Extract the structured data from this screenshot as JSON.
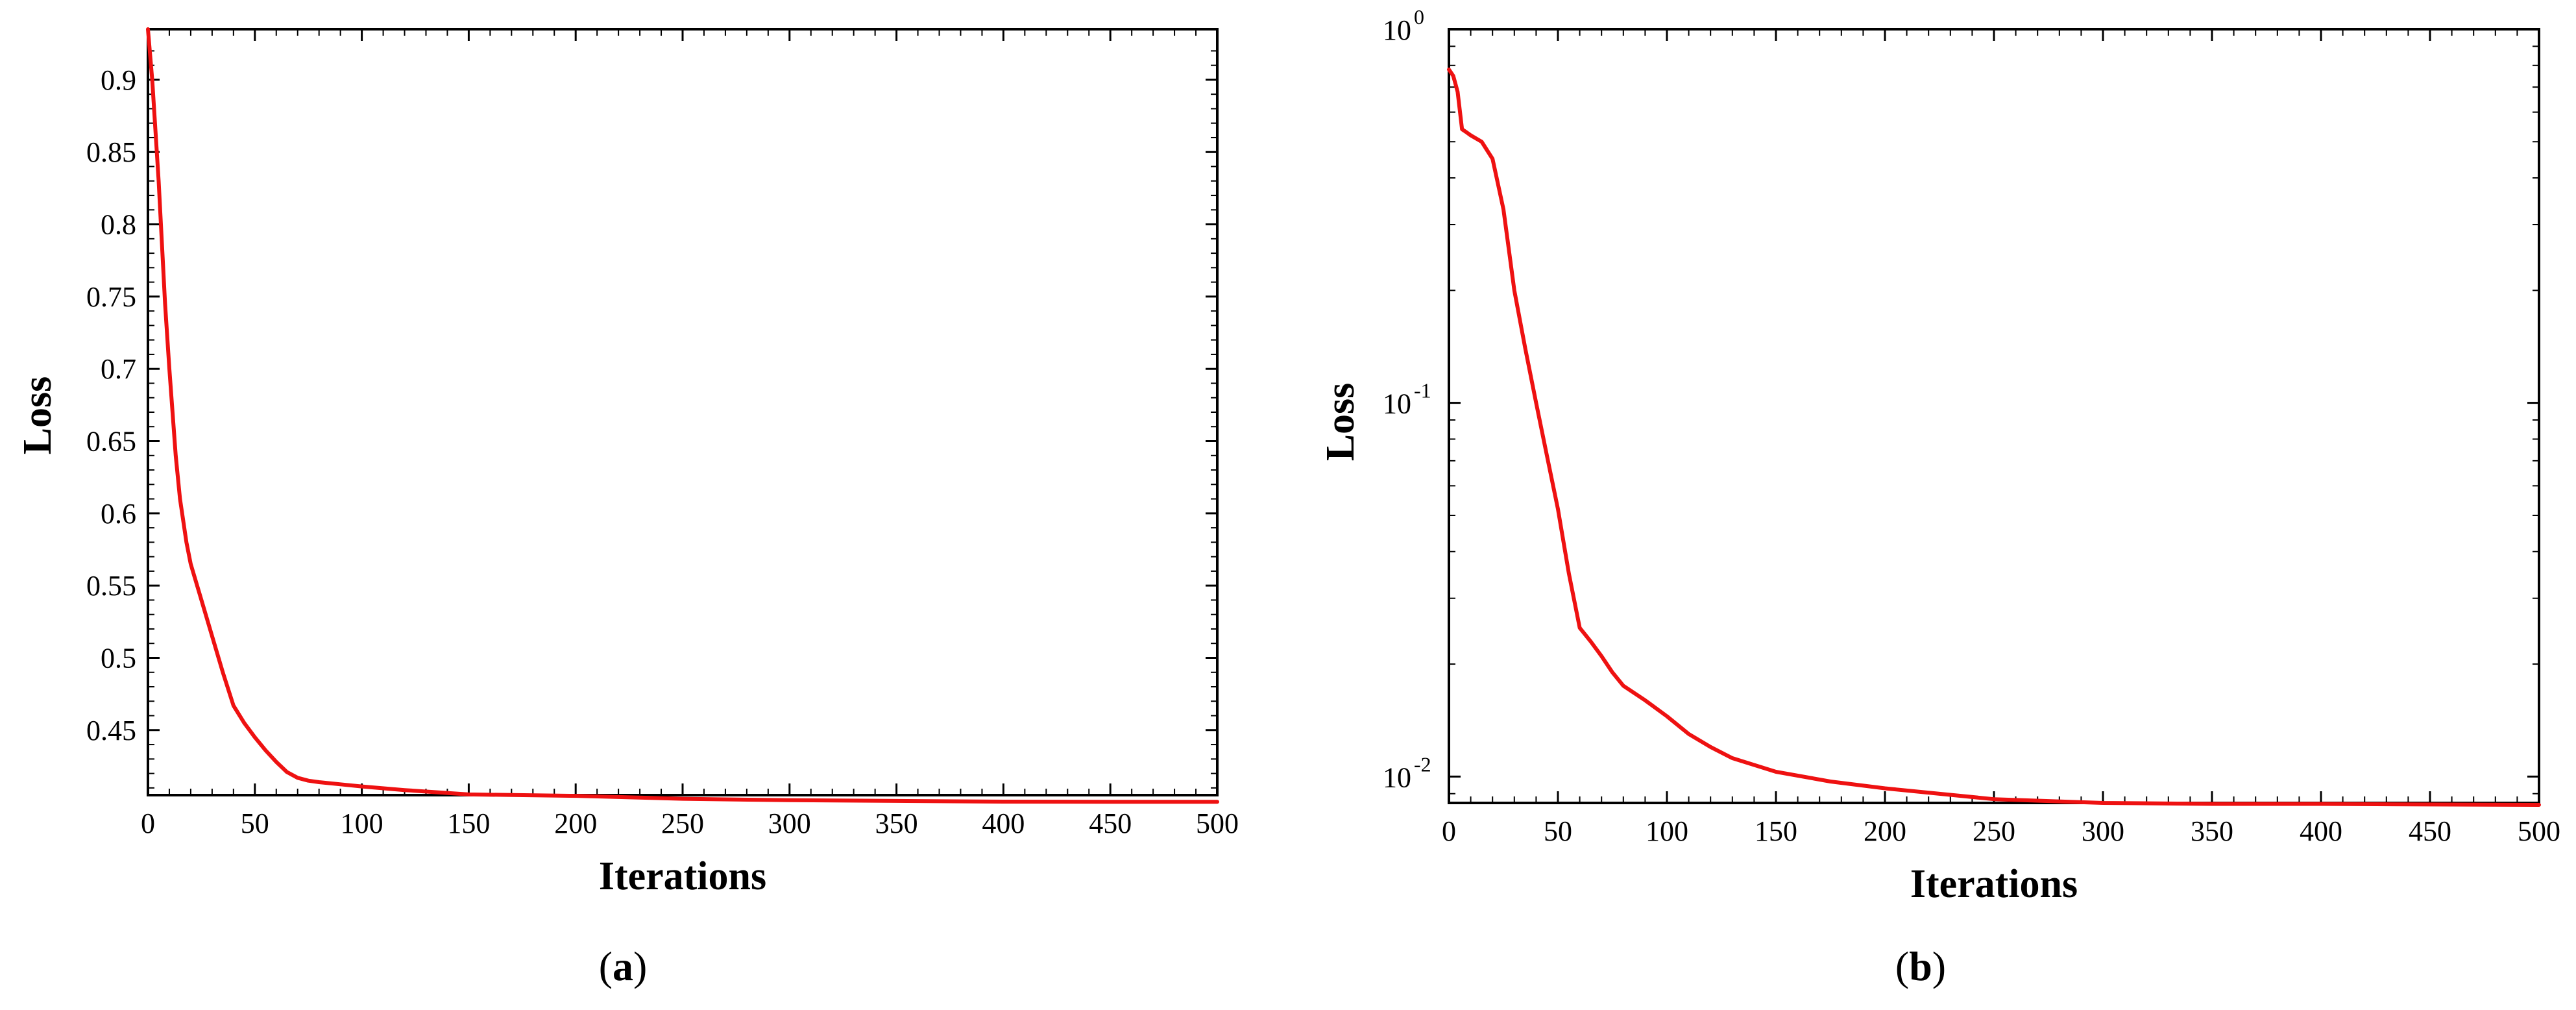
{
  "chart_data": [
    {
      "type": "line",
      "caption_letter": "a",
      "xlabel": "Iterations",
      "ylabel": "Loss",
      "xlim": [
        0,
        500
      ],
      "ylim": [
        0.405,
        0.935
      ],
      "yscale": "linear",
      "x_ticks": [
        0,
        50,
        100,
        150,
        200,
        250,
        300,
        350,
        400,
        450,
        500
      ],
      "y_ticks": [
        0.45,
        0.5,
        0.55,
        0.6,
        0.65,
        0.7,
        0.75,
        0.8,
        0.85,
        0.9
      ],
      "grid": false,
      "line_color": "#ee1111",
      "series": [
        {
          "x": [
            0,
            2,
            5,
            8,
            10,
            13,
            15,
            18,
            20,
            25,
            30,
            35,
            40,
            45,
            50,
            55,
            60,
            65,
            70,
            75,
            80,
            90,
            100,
            120,
            150,
            200,
            250,
            300,
            350,
            400,
            450,
            500
          ],
          "y": [
            0.935,
            0.9,
            0.83,
            0.745,
            0.7,
            0.64,
            0.61,
            0.58,
            0.565,
            0.54,
            0.515,
            0.49,
            0.467,
            0.455,
            0.445,
            0.436,
            0.428,
            0.421,
            0.417,
            0.415,
            0.414,
            0.4125,
            0.411,
            0.4085,
            0.4055,
            0.4045,
            0.4025,
            0.4015,
            0.401,
            0.4005,
            0.4004,
            0.4004
          ]
        }
      ]
    },
    {
      "type": "line",
      "caption_letter": "b",
      "xlabel": "Iterations",
      "ylabel": "Loss",
      "xlim": [
        0,
        500
      ],
      "ylim": [
        0.0085,
        1
      ],
      "yscale": "log",
      "x_ticks": [
        0,
        50,
        100,
        150,
        200,
        250,
        300,
        350,
        400,
        450,
        500
      ],
      "y_ticks": [
        {
          "value": 0.01,
          "base": "10",
          "exp": "-2"
        },
        {
          "value": 0.1,
          "base": "10",
          "exp": "-1"
        },
        {
          "value": 1,
          "base": "10",
          "exp": "0"
        }
      ],
      "grid": false,
      "line_color": "#ee1111",
      "series": [
        {
          "x": [
            0,
            2,
            4,
            6,
            8,
            10,
            15,
            20,
            25,
            30,
            35,
            40,
            45,
            50,
            55,
            60,
            65,
            70,
            75,
            80,
            90,
            100,
            110,
            120,
            130,
            150,
            175,
            200,
            250,
            300,
            350,
            400,
            450,
            500
          ],
          "y": [
            0.78,
            0.75,
            0.68,
            0.54,
            0.53,
            0.52,
            0.5,
            0.45,
            0.33,
            0.2,
            0.14,
            0.1,
            0.072,
            0.052,
            0.035,
            0.025,
            0.023,
            0.021,
            0.019,
            0.0175,
            0.016,
            0.0145,
            0.013,
            0.012,
            0.0112,
            0.0103,
            0.0097,
            0.0093,
            0.0087,
            0.0085,
            0.00845,
            0.00845,
            0.00842,
            0.0084
          ]
        }
      ]
    }
  ]
}
